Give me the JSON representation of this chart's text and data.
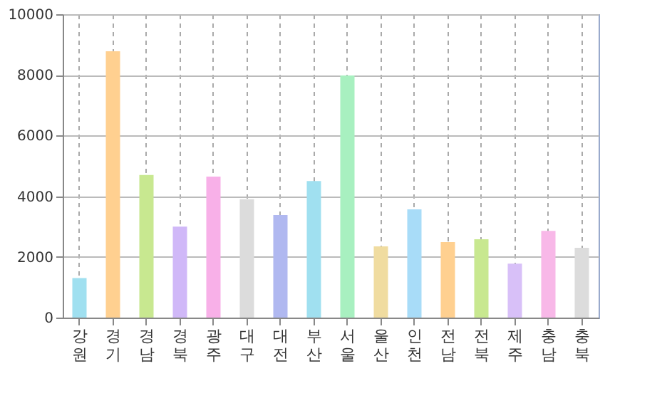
{
  "chart_data": {
    "type": "bar",
    "categories": [
      "강원",
      "경기",
      "경남",
      "경북",
      "광주",
      "대구",
      "대전",
      "부산",
      "서울",
      "울산",
      "인천",
      "전남",
      "전북",
      "제주",
      "충남",
      "충북"
    ],
    "values": [
      1300,
      8780,
      4700,
      3000,
      4650,
      3900,
      3380,
      4500,
      7980,
      2350,
      3570,
      2490,
      2580,
      1780,
      2860,
      2300
    ],
    "colors": [
      "#a0e0f0",
      "#ffd090",
      "#c8e890",
      "#d0b8f8",
      "#f8b0e8",
      "#dcdcdc",
      "#b0b8f0",
      "#a0e0f0",
      "#a8f0c0",
      "#f0dca0",
      "#a8dcf8",
      "#ffd090",
      "#c8e890",
      "#d8c0f8",
      "#f8b8e8",
      "#dcdcdc"
    ],
    "ylim": [
      0,
      10000
    ],
    "yticks": [
      0,
      2000,
      4000,
      6000,
      8000,
      10000
    ],
    "grid": true
  }
}
